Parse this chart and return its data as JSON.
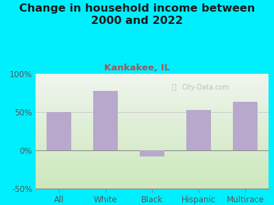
{
  "title": "Change in household income between\n2000 and 2022",
  "subtitle": "Kankakee, IL",
  "categories": [
    "All",
    "White",
    "Black",
    "Hispanic",
    "Multirace"
  ],
  "values": [
    50,
    78,
    -8,
    53,
    63
  ],
  "bar_color": "#b8a8cc",
  "title_color": "#1a1a1a",
  "subtitle_color": "#b05050",
  "background_outer": "#00efff",
  "background_inner_top": "#f0f5ee",
  "background_inner_bottom": "#cce8bc",
  "ylim": [
    -50,
    100
  ],
  "yticks": [
    -50,
    0,
    50,
    100
  ],
  "ytick_labels": [
    "-50%",
    "0%",
    "50%",
    "100%"
  ],
  "hline_50_color": "#cccccc",
  "axis_color": "#888888",
  "watermark": "City-Data.com",
  "title_fontsize": 11.5,
  "subtitle_fontsize": 9.5,
  "tick_fontsize": 8.5,
  "bar_width": 0.52
}
